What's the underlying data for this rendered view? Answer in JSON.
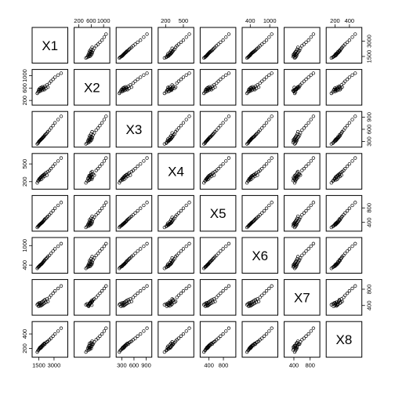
{
  "chart_data": {
    "type": "scatter",
    "variables": [
      "X1",
      "X2",
      "X3",
      "X4",
      "X5",
      "X6",
      "X7",
      "X8"
    ],
    "grid": false,
    "tick_labels": {
      "X1": [
        "1500",
        "3000"
      ],
      "X2": [
        "200",
        "600",
        "1000"
      ],
      "X3": [
        "300",
        "600",
        "900"
      ],
      "X4": [
        "200",
        "500"
      ],
      "X5": [
        "400",
        "800"
      ],
      "X6": [
        "400",
        "1000"
      ],
      "X7": [
        "400",
        "800"
      ],
      "X8": [
        "200",
        "400"
      ]
    },
    "ticks": {
      "X1": [
        1500,
        3000
      ],
      "X2": [
        200,
        600,
        1000
      ],
      "X3": [
        300,
        600,
        900
      ],
      "X4": [
        200,
        500
      ],
      "X5": [
        400,
        800
      ],
      "X6": [
        400,
        1000
      ],
      "X7": [
        400,
        800
      ],
      "X8": [
        200,
        400
      ]
    },
    "ranges": {
      "X1": [
        1000,
        4200
      ],
      "X2": [
        100,
        1150
      ],
      "X3": [
        200,
        1000
      ],
      "X4": [
        100,
        650
      ],
      "X5": [
        200,
        1100
      ],
      "X6": [
        200,
        1200
      ],
      "X7": [
        200,
        1000
      ],
      "X8": [
        100,
        550
      ]
    },
    "observations": [
      {
        "X1": 1350,
        "X2": 430,
        "X3": 240,
        "X4": 180,
        "X5": 260,
        "X6": 300,
        "X7": 420,
        "X8": 150
      },
      {
        "X1": 1420,
        "X2": 470,
        "X3": 260,
        "X4": 210,
        "X5": 290,
        "X6": 330,
        "X7": 440,
        "X8": 170
      },
      {
        "X1": 1480,
        "X2": 520,
        "X3": 280,
        "X4": 220,
        "X5": 300,
        "X6": 350,
        "X7": 380,
        "X8": 180
      },
      {
        "X1": 1520,
        "X2": 560,
        "X3": 300,
        "X4": 240,
        "X5": 320,
        "X6": 360,
        "X7": 460,
        "X8": 190
      },
      {
        "X1": 1560,
        "X2": 490,
        "X3": 310,
        "X4": 250,
        "X5": 330,
        "X6": 370,
        "X7": 400,
        "X8": 200
      },
      {
        "X1": 1600,
        "X2": 540,
        "X3": 320,
        "X4": 230,
        "X5": 340,
        "X6": 390,
        "X7": 430,
        "X8": 210
      },
      {
        "X1": 1640,
        "X2": 600,
        "X3": 330,
        "X4": 260,
        "X5": 350,
        "X6": 400,
        "X7": 470,
        "X8": 200
      },
      {
        "X1": 1680,
        "X2": 510,
        "X3": 340,
        "X4": 270,
        "X5": 360,
        "X6": 410,
        "X7": 390,
        "X8": 220
      },
      {
        "X1": 1720,
        "X2": 560,
        "X3": 350,
        "X4": 280,
        "X5": 370,
        "X6": 420,
        "X7": 450,
        "X8": 210
      },
      {
        "X1": 1760,
        "X2": 620,
        "X3": 360,
        "X4": 240,
        "X5": 380,
        "X6": 430,
        "X7": 410,
        "X8": 230
      },
      {
        "X1": 1800,
        "X2": 580,
        "X3": 370,
        "X4": 290,
        "X5": 390,
        "X6": 440,
        "X7": 480,
        "X8": 220
      },
      {
        "X1": 1850,
        "X2": 530,
        "X3": 380,
        "X4": 300,
        "X5": 400,
        "X6": 460,
        "X7": 420,
        "X8": 240
      },
      {
        "X1": 1900,
        "X2": 640,
        "X3": 400,
        "X4": 270,
        "X5": 420,
        "X6": 480,
        "X7": 500,
        "X8": 250
      },
      {
        "X1": 1950,
        "X2": 570,
        "X3": 410,
        "X4": 310,
        "X5": 430,
        "X6": 500,
        "X7": 440,
        "X8": 240
      },
      {
        "X1": 2000,
        "X2": 610,
        "X3": 420,
        "X4": 320,
        "X5": 450,
        "X6": 520,
        "X7": 520,
        "X8": 260
      },
      {
        "X1": 2050,
        "X2": 550,
        "X3": 440,
        "X4": 290,
        "X5": 470,
        "X6": 540,
        "X7": 460,
        "X8": 270
      },
      {
        "X1": 2100,
        "X2": 660,
        "X3": 460,
        "X4": 330,
        "X5": 490,
        "X6": 560,
        "X7": 540,
        "X8": 260
      },
      {
        "X1": 2200,
        "X2": 590,
        "X3": 480,
        "X4": 350,
        "X5": 510,
        "X6": 590,
        "X7": 480,
        "X8": 280
      },
      {
        "X1": 2300,
        "X2": 700,
        "X3": 510,
        "X4": 310,
        "X5": 540,
        "X6": 620,
        "X7": 560,
        "X8": 290
      },
      {
        "X1": 2400,
        "X2": 630,
        "X3": 540,
        "X4": 370,
        "X5": 570,
        "X6": 660,
        "X7": 500,
        "X8": 300
      },
      {
        "X1": 2550,
        "X2": 760,
        "X3": 580,
        "X4": 390,
        "X5": 610,
        "X6": 700,
        "X7": 600,
        "X8": 320
      },
      {
        "X1": 2700,
        "X2": 820,
        "X3": 630,
        "X4": 420,
        "X5": 660,
        "X6": 760,
        "X7": 650,
        "X8": 340
      },
      {
        "X1": 2900,
        "X2": 880,
        "X3": 690,
        "X4": 460,
        "X5": 720,
        "X6": 830,
        "X7": 700,
        "X8": 370
      },
      {
        "X1": 3100,
        "X2": 950,
        "X3": 760,
        "X4": 500,
        "X5": 790,
        "X6": 900,
        "X7": 760,
        "X8": 400
      },
      {
        "X1": 3400,
        "X2": 1020,
        "X3": 840,
        "X4": 550,
        "X5": 870,
        "X6": 980,
        "X7": 820,
        "X8": 440
      },
      {
        "X1": 3700,
        "X2": 1080,
        "X3": 920,
        "X4": 600,
        "X5": 950,
        "X6": 1060,
        "X7": 880,
        "X8": 480
      }
    ]
  }
}
